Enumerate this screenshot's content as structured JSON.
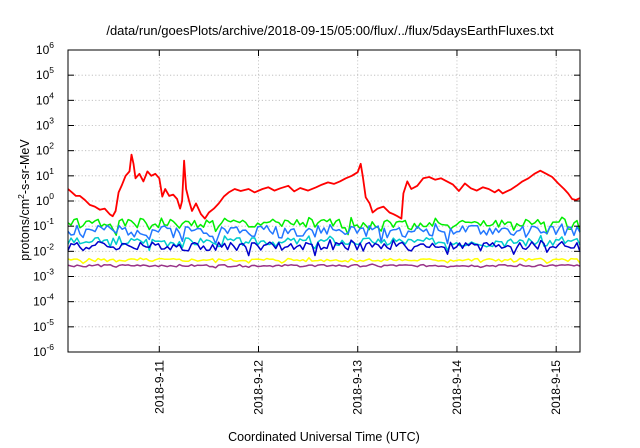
{
  "chart_data": {
    "type": "line",
    "title": "/data/run/goesPlots/archive/2018-09-15/05:00/flux/../flux/5daysEarthFluxes.txt",
    "xlabel": "Coordinated Universal Time (UTC)",
    "ylabel": {
      "prefix": "protons/cm",
      "sup": "2",
      "suffix": "-s-sr-MeV"
    },
    "x_range_days": [
      10.08,
      15.24
    ],
    "x_ticks": [
      {
        "label": "2018-9-11",
        "day": 11
      },
      {
        "label": "2018-9-12",
        "day": 12
      },
      {
        "label": "2018-9-13",
        "day": 13
      },
      {
        "label": "2018-9-14",
        "day": 14
      },
      {
        "label": "2018-9-15",
        "day": 15
      }
    ],
    "y_scale": "log",
    "y_range": [
      1e-06,
      1000000.0
    ],
    "y_ticks": [
      {
        "base": "10",
        "exp": "-6",
        "value": -6
      },
      {
        "base": "10",
        "exp": "-5",
        "value": -5
      },
      {
        "base": "10",
        "exp": "-4",
        "value": -4
      },
      {
        "base": "10",
        "exp": "-3",
        "value": -3
      },
      {
        "base": "10",
        "exp": "-2",
        "value": -2
      },
      {
        "base": "10",
        "exp": "-1",
        "value": -1
      },
      {
        "base": "10",
        "exp": "0",
        "value": 0
      },
      {
        "base": "10",
        "exp": "1",
        "value": 1
      },
      {
        "base": "10",
        "exp": "2",
        "value": 2
      },
      {
        "base": "10",
        "exp": "3",
        "value": 3
      },
      {
        "base": "10",
        "exp": "4",
        "value": 4
      },
      {
        "base": "10",
        "exp": "5",
        "value": 5
      },
      {
        "base": "10",
        "exp": "6",
        "value": 6
      }
    ],
    "grid": true,
    "legend": "none",
    "series": [
      {
        "color": "#ff0000",
        "points": [
          [
            10.08,
            3
          ],
          [
            10.12,
            2.2
          ],
          [
            10.16,
            1.6
          ],
          [
            10.2,
            1.6
          ],
          [
            10.25,
            1.1
          ],
          [
            10.3,
            0.7
          ],
          [
            10.35,
            0.6
          ],
          [
            10.4,
            0.45
          ],
          [
            10.45,
            0.5
          ],
          [
            10.5,
            0.3
          ],
          [
            10.53,
            0.25
          ],
          [
            10.56,
            0.4
          ],
          [
            10.59,
            2.2
          ],
          [
            10.62,
            4
          ],
          [
            10.66,
            10
          ],
          [
            10.7,
            15
          ],
          [
            10.72,
            70
          ],
          [
            10.74,
            30
          ],
          [
            10.76,
            8
          ],
          [
            10.8,
            12
          ],
          [
            10.84,
            6
          ],
          [
            10.88,
            15
          ],
          [
            10.92,
            10
          ],
          [
            10.96,
            12
          ],
          [
            11.0,
            8
          ],
          [
            11.03,
            1.5
          ],
          [
            11.06,
            3
          ],
          [
            11.1,
            1.6
          ],
          [
            11.14,
            1.8
          ],
          [
            11.18,
            1.2
          ],
          [
            11.21,
            0.5
          ],
          [
            11.23,
            1
          ],
          [
            11.25,
            40
          ],
          [
            11.27,
            3
          ],
          [
            11.3,
            1
          ],
          [
            11.33,
            0.4
          ],
          [
            11.37,
            0.8
          ],
          [
            11.42,
            0.3
          ],
          [
            11.46,
            0.2
          ],
          [
            11.5,
            0.35
          ],
          [
            11.55,
            0.5
          ],
          [
            11.6,
            0.8
          ],
          [
            11.65,
            1.5
          ],
          [
            11.7,
            2.2
          ],
          [
            11.76,
            3
          ],
          [
            11.82,
            2.5
          ],
          [
            11.9,
            3
          ],
          [
            11.96,
            2.2
          ],
          [
            12.04,
            3
          ],
          [
            12.1,
            3.5
          ],
          [
            12.16,
            2.6
          ],
          [
            12.22,
            3.2
          ],
          [
            12.3,
            4
          ],
          [
            12.36,
            2.4
          ],
          [
            12.42,
            3.3
          ],
          [
            12.5,
            2.6
          ],
          [
            12.58,
            3.5
          ],
          [
            12.64,
            4.5
          ],
          [
            12.7,
            5.5
          ],
          [
            12.76,
            4.8
          ],
          [
            12.82,
            6
          ],
          [
            12.88,
            8
          ],
          [
            12.94,
            10
          ],
          [
            13.0,
            14
          ],
          [
            13.03,
            30
          ],
          [
            13.05,
            10
          ],
          [
            13.08,
            1.4
          ],
          [
            13.12,
            0.8
          ],
          [
            13.15,
            0.35
          ],
          [
            13.2,
            0.5
          ],
          [
            13.26,
            0.6
          ],
          [
            13.32,
            0.35
          ],
          [
            13.36,
            0.3
          ],
          [
            13.4,
            0.25
          ],
          [
            13.44,
            0.2
          ],
          [
            13.46,
            2
          ],
          [
            13.5,
            6
          ],
          [
            13.54,
            3
          ],
          [
            13.6,
            4
          ],
          [
            13.66,
            8
          ],
          [
            13.72,
            9
          ],
          [
            13.78,
            7
          ],
          [
            13.84,
            8
          ],
          [
            13.9,
            6
          ],
          [
            13.96,
            4.5
          ],
          [
            14.02,
            2.5
          ],
          [
            14.08,
            5
          ],
          [
            14.14,
            3.2
          ],
          [
            14.2,
            2.6
          ],
          [
            14.26,
            3.5
          ],
          [
            14.32,
            3
          ],
          [
            14.38,
            2.2
          ],
          [
            14.42,
            2.8
          ],
          [
            14.46,
            2
          ],
          [
            14.5,
            2.4
          ],
          [
            14.54,
            2.8
          ],
          [
            14.6,
            4
          ],
          [
            14.66,
            6
          ],
          [
            14.72,
            8
          ],
          [
            14.78,
            12
          ],
          [
            14.84,
            16
          ],
          [
            14.9,
            12
          ],
          [
            14.96,
            9
          ],
          [
            15.02,
            5
          ],
          [
            15.08,
            3
          ],
          [
            15.12,
            2
          ],
          [
            15.16,
            1.2
          ],
          [
            15.2,
            1.1
          ],
          [
            15.24,
            1.3
          ]
        ]
      },
      {
        "color": "#00ee00",
        "base": 0.13,
        "amp": 0.45,
        "seed": 1
      },
      {
        "color": "#2277ff",
        "base": 0.07,
        "amp": 0.5,
        "seed": 2
      },
      {
        "color": "#00cccc",
        "base": 0.025,
        "amp": 0.4,
        "seed": 3
      },
      {
        "color": "#0000cc",
        "base": 0.017,
        "amp": 0.4,
        "seed": 4
      },
      {
        "color": "#ffff00",
        "base": 0.0045,
        "amp": 0.15,
        "seed": 5
      },
      {
        "color": "#993388",
        "base": 0.0027,
        "amp": 0.1,
        "seed": 6
      }
    ]
  }
}
